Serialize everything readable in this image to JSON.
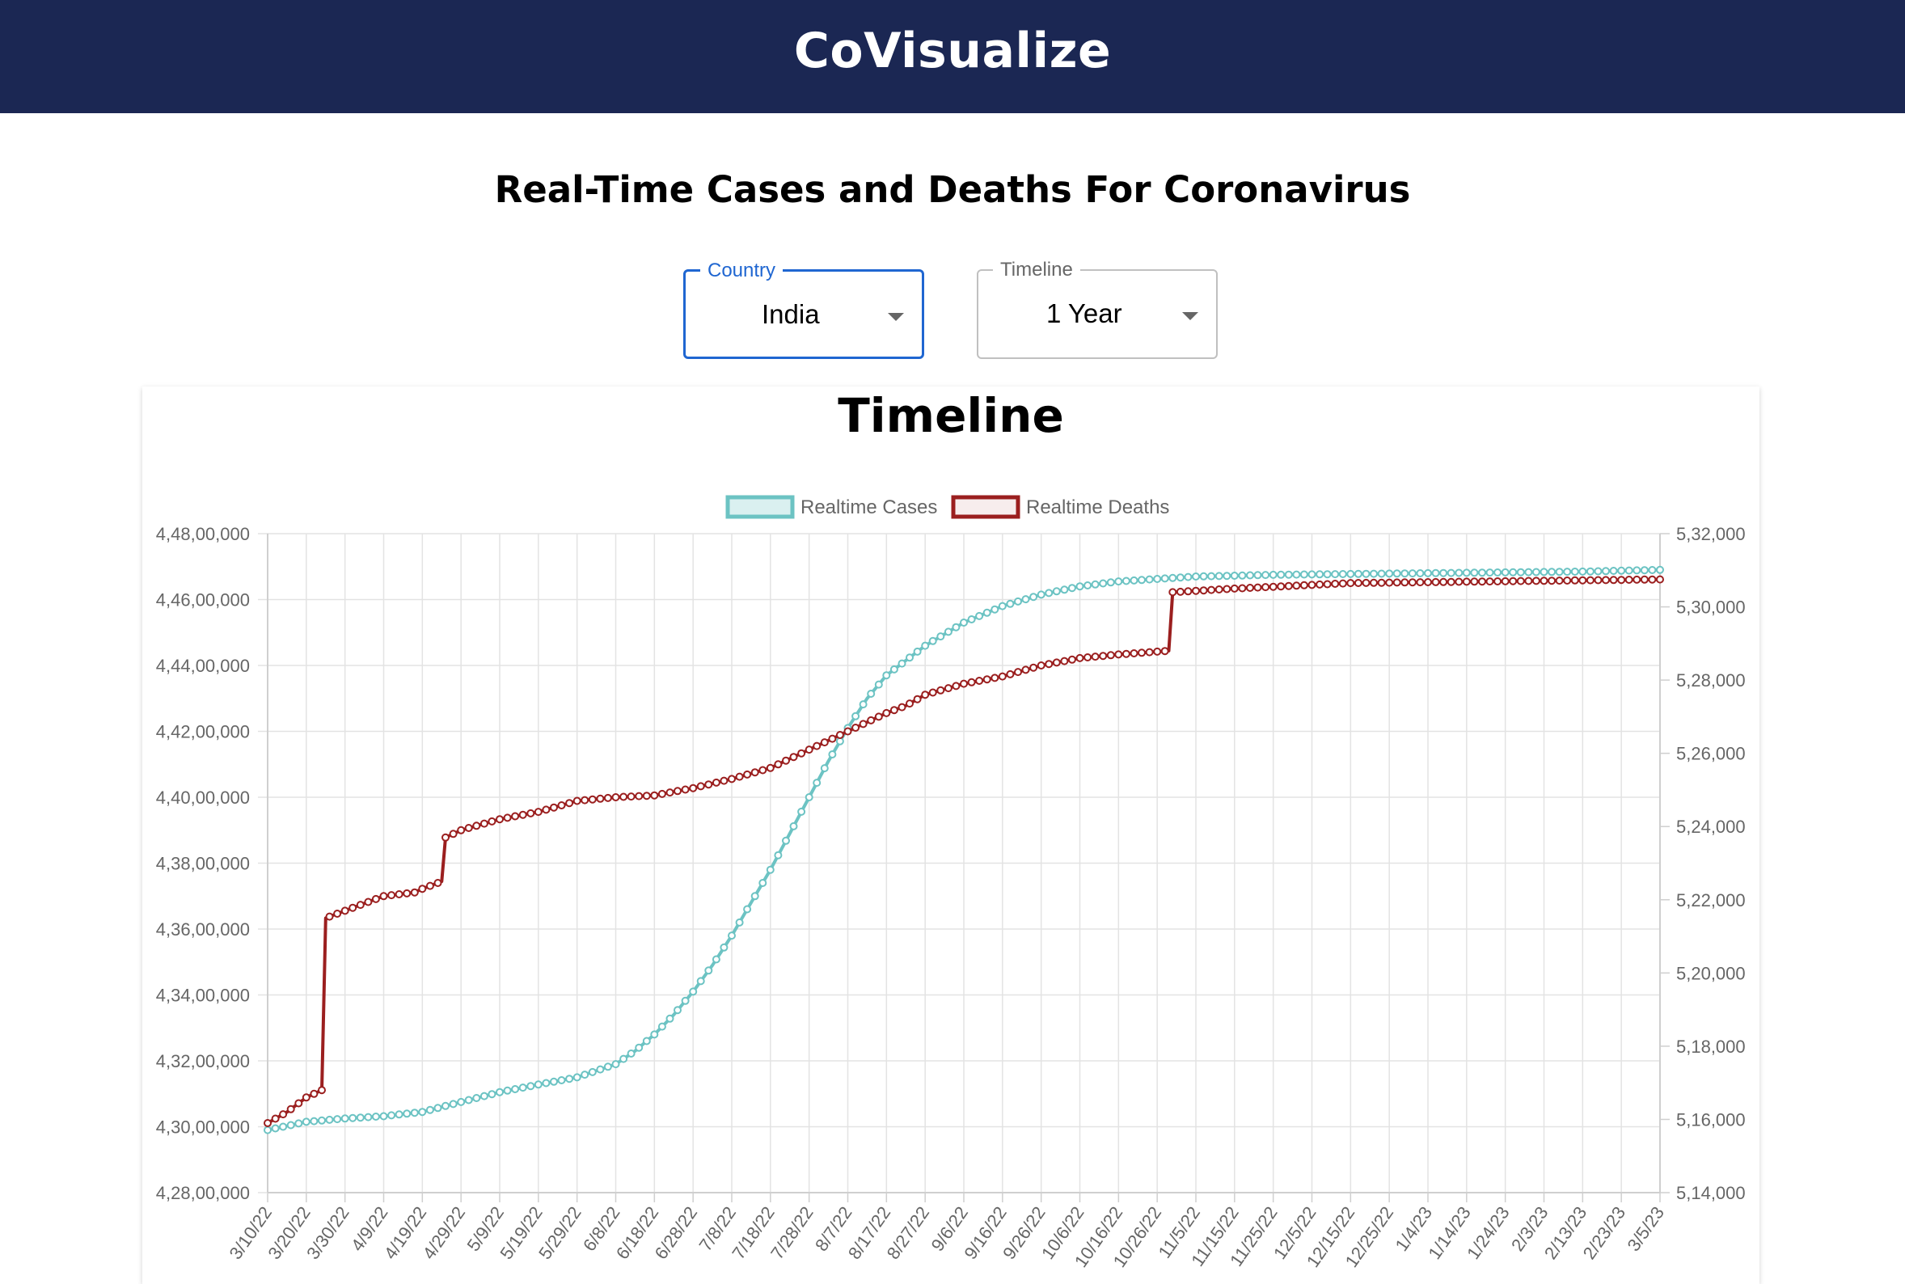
{
  "app": {
    "title": "CoVisualize"
  },
  "page": {
    "heading": "Real-Time Cases and Deaths For Coronavirus"
  },
  "filters": {
    "country": {
      "label": "Country",
      "value": "India"
    },
    "timeline": {
      "label": "Timeline",
      "value": "1 Year"
    }
  },
  "colors": {
    "header_bg": "#1b2753",
    "cases": "#6cc3c3",
    "deaths": "#9b1f1f",
    "focus": "#1f66d1"
  },
  "icons": {
    "dropdown": "chevron-down-icon"
  },
  "chart_data": {
    "type": "line",
    "title": "Timeline",
    "legend": {
      "position": "top-center",
      "entries": [
        "Realtime Cases",
        "Realtime Deaths"
      ]
    },
    "grid": true,
    "x_tick_labels": [
      "3/10/22",
      "3/20/22",
      "3/30/22",
      "4/9/22",
      "4/19/22",
      "4/29/22",
      "5/9/22",
      "5/19/22",
      "5/29/22",
      "6/8/22",
      "6/18/22",
      "6/28/22",
      "7/8/22",
      "7/18/22",
      "7/28/22",
      "8/7/22",
      "8/17/22",
      "8/27/22",
      "9/6/22",
      "9/16/22",
      "9/26/22",
      "10/6/22",
      "10/16/22",
      "10/26/22",
      "11/5/22",
      "11/15/22",
      "11/25/22",
      "12/5/22",
      "12/15/22",
      "12/25/22",
      "1/4/23",
      "1/14/23",
      "1/24/23",
      "2/3/23",
      "2/13/23",
      "2/23/23",
      "3/5/23"
    ],
    "y_left": {
      "ticks": [
        "4,28,00,000",
        "4,30,00,000",
        "4,32,00,000",
        "4,34,00,000",
        "4,36,00,000",
        "4,38,00,000",
        "4,40,00,000",
        "4,42,00,000",
        "4,44,00,000",
        "4,46,00,000",
        "4,48,00,000"
      ],
      "range": [
        42800000,
        44800000
      ]
    },
    "y_right": {
      "ticks": [
        "5,14,000",
        "5,16,000",
        "5,18,000",
        "5,20,000",
        "5,22,000",
        "5,24,000",
        "5,26,000",
        "5,28,000",
        "5,30,000",
        "5,32,000"
      ],
      "range": [
        514000,
        532000
      ]
    },
    "x_range_days": [
      0,
      360
    ],
    "series": [
      {
        "name": "Realtime Cases",
        "axis": "left",
        "color": "#6cc3c3",
        "points": [
          [
            0,
            42990000
          ],
          [
            10,
            43015000
          ],
          [
            20,
            43025000
          ],
          [
            30,
            43032000
          ],
          [
            40,
            43045000
          ],
          [
            50,
            43075000
          ],
          [
            60,
            43105000
          ],
          [
            70,
            43128000
          ],
          [
            80,
            43150000
          ],
          [
            90,
            43190000
          ],
          [
            95,
            43230000
          ],
          [
            100,
            43280000
          ],
          [
            105,
            43340000
          ],
          [
            110,
            43410000
          ],
          [
            115,
            43490000
          ],
          [
            120,
            43580000
          ],
          [
            125,
            43680000
          ],
          [
            130,
            43780000
          ],
          [
            135,
            43890000
          ],
          [
            140,
            44000000
          ],
          [
            145,
            44110000
          ],
          [
            150,
            44210000
          ],
          [
            155,
            44300000
          ],
          [
            160,
            44370000
          ],
          [
            170,
            44460000
          ],
          [
            180,
            44530000
          ],
          [
            190,
            44580000
          ],
          [
            200,
            44615000
          ],
          [
            210,
            44640000
          ],
          [
            220,
            44655000
          ],
          [
            240,
            44670000
          ],
          [
            260,
            44675000
          ],
          [
            300,
            44680000
          ],
          [
            340,
            44685000
          ],
          [
            360,
            44690000
          ]
        ]
      },
      {
        "name": "Realtime Deaths",
        "axis": "right",
        "color": "#9b1f1f",
        "points": [
          [
            0,
            515900
          ],
          [
            5,
            516200
          ],
          [
            10,
            516600
          ],
          [
            14,
            516800
          ],
          [
            15,
            521500
          ],
          [
            20,
            521700
          ],
          [
            25,
            521900
          ],
          [
            30,
            522100
          ],
          [
            38,
            522200
          ],
          [
            40,
            522300
          ],
          [
            45,
            522500
          ],
          [
            46,
            523700
          ],
          [
            50,
            523900
          ],
          [
            60,
            524200
          ],
          [
            70,
            524400
          ],
          [
            80,
            524700
          ],
          [
            90,
            524800
          ],
          [
            100,
            524850
          ],
          [
            110,
            525050
          ],
          [
            120,
            525300
          ],
          [
            130,
            525600
          ],
          [
            140,
            526100
          ],
          [
            150,
            526600
          ],
          [
            160,
            527100
          ],
          [
            165,
            527300
          ],
          [
            170,
            527600
          ],
          [
            180,
            527900
          ],
          [
            190,
            528100
          ],
          [
            200,
            528400
          ],
          [
            210,
            528600
          ],
          [
            220,
            528700
          ],
          [
            233,
            528800
          ],
          [
            234,
            530400
          ],
          [
            250,
            530500
          ],
          [
            280,
            530650
          ],
          [
            320,
            530700
          ],
          [
            360,
            530750
          ]
        ]
      }
    ]
  }
}
